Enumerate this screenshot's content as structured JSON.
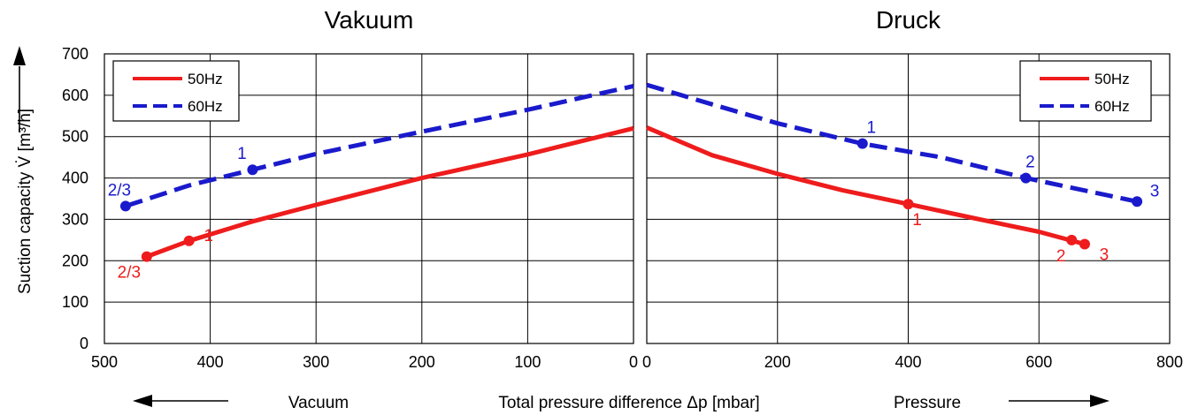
{
  "chart_data": [
    {
      "type": "line",
      "panel": "left",
      "title": "Vakuum",
      "xlim": [
        500,
        0
      ],
      "ylim": [
        0,
        700
      ],
      "x_ticks": [
        "500",
        "400",
        "300",
        "200",
        "100",
        "0"
      ],
      "y_ticks": [
        "0",
        "100",
        "200",
        "300",
        "400",
        "500",
        "600",
        "700"
      ],
      "grid": true,
      "legend_position": "top-left",
      "series": [
        {
          "name": "50Hz",
          "color": "#ee1c1c",
          "style": "solid",
          "x": [
            460,
            420,
            360,
            300,
            200,
            100,
            0
          ],
          "y": [
            210,
            248,
            295,
            335,
            400,
            457,
            520
          ],
          "points": [
            {
              "x": 460,
              "y": 210,
              "label": "2/3"
            },
            {
              "x": 420,
              "y": 248,
              "label": "1"
            }
          ]
        },
        {
          "name": "60Hz",
          "color": "#1a1acc",
          "style": "dashed",
          "x": [
            480,
            420,
            360,
            300,
            200,
            100,
            0
          ],
          "y": [
            332,
            382,
            420,
            458,
            512,
            565,
            622
          ],
          "points": [
            {
              "x": 480,
              "y": 332,
              "label": "2/3"
            },
            {
              "x": 360,
              "y": 420,
              "label": "1"
            }
          ]
        }
      ]
    },
    {
      "type": "line",
      "panel": "right",
      "title": "Druck",
      "xlim": [
        0,
        800
      ],
      "ylim": [
        0,
        700
      ],
      "x_ticks": [
        "0",
        "200",
        "400",
        "600",
        "800"
      ],
      "grid": true,
      "legend_position": "top-right",
      "series": [
        {
          "name": "50Hz",
          "color": "#ee1c1c",
          "style": "solid",
          "x": [
            0,
            100,
            200,
            300,
            400,
            500,
            600,
            670
          ],
          "y": [
            522,
            455,
            410,
            370,
            337,
            303,
            270,
            240
          ],
          "points": [
            {
              "x": 400,
              "y": 337,
              "label": "1"
            },
            {
              "x": 650,
              "y": 250,
              "label": "2"
            },
            {
              "x": 670,
              "y": 240,
              "label": "3"
            }
          ]
        },
        {
          "name": "60Hz",
          "color": "#1a1acc",
          "style": "dashed",
          "x": [
            0,
            100,
            200,
            330,
            450,
            580,
            750
          ],
          "y": [
            625,
            578,
            532,
            483,
            450,
            400,
            343
          ],
          "points": [
            {
              "x": 330,
              "y": 483,
              "label": "1"
            },
            {
              "x": 580,
              "y": 400,
              "label": "2"
            },
            {
              "x": 750,
              "y": 343,
              "label": "3"
            }
          ]
        }
      ]
    }
  ],
  "labels": {
    "ylabel": "Suction capacity V̇ [m³/h]",
    "xlabel": "Total pressure difference Δp [mbar]",
    "vacuum": "Vacuum",
    "pressure": "Pressure"
  }
}
